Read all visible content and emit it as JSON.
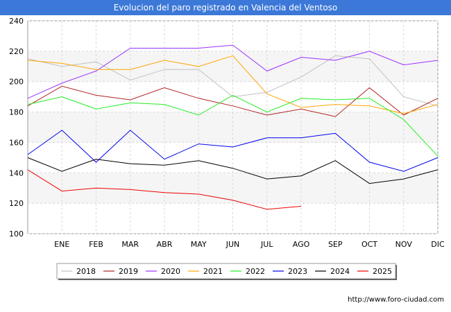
{
  "header": {
    "title": "Evolucion del paro registrado en Valencia del Ventoso"
  },
  "footer": {
    "source": "http://www.foro-ciudad.com"
  },
  "chart_data": {
    "type": "line",
    "title": "Evolucion del paro registrado en Valencia del Ventoso",
    "xlabel": "",
    "ylabel": "",
    "x_tick_labels": [
      "ENE",
      "FEB",
      "MAR",
      "ABR",
      "MAY",
      "JUN",
      "JUL",
      "AGO",
      "SEP",
      "OCT",
      "NOV",
      "DIC"
    ],
    "ylim": [
      100,
      240
    ],
    "y_ticks": [
      100,
      120,
      140,
      160,
      180,
      200,
      220,
      240
    ],
    "grid": true,
    "legend_position": "bottom",
    "series": [
      {
        "name": "2018",
        "color": "#c0c0c0",
        "values": [
          215,
          210,
          213,
          201,
          208,
          208,
          190,
          193,
          203,
          217,
          215,
          190,
          184
        ]
      },
      {
        "name": "2019",
        "color": "#b22222",
        "values": [
          184,
          197,
          191,
          188,
          196,
          189,
          184,
          178,
          182,
          177,
          196,
          178,
          189
        ]
      },
      {
        "name": "2020",
        "color": "#9b30ff",
        "values": [
          189,
          199,
          207,
          222,
          222,
          222,
          224,
          207,
          216,
          214,
          220,
          211,
          214
        ]
      },
      {
        "name": "2021",
        "color": "#ffa500",
        "values": [
          214,
          212,
          208,
          208,
          214,
          210,
          217,
          192,
          183,
          185,
          184,
          179,
          185
        ]
      },
      {
        "name": "2022",
        "color": "#22ee22",
        "values": [
          185,
          190,
          182,
          186,
          185,
          178,
          191,
          180,
          189,
          188,
          189,
          175,
          151
        ]
      },
      {
        "name": "2023",
        "color": "#0000ee",
        "values": [
          152,
          168,
          147,
          168,
          149,
          159,
          157,
          163,
          163,
          166,
          147,
          141,
          150
        ]
      },
      {
        "name": "2024",
        "color": "#000000",
        "values": [
          150,
          141,
          149,
          146,
          145,
          148,
          143,
          136,
          138,
          148,
          133,
          136,
          142
        ]
      },
      {
        "name": "2025",
        "color": "#ee0000",
        "values": [
          142,
          128,
          130,
          129,
          127,
          126,
          122,
          116,
          118
        ]
      }
    ]
  }
}
